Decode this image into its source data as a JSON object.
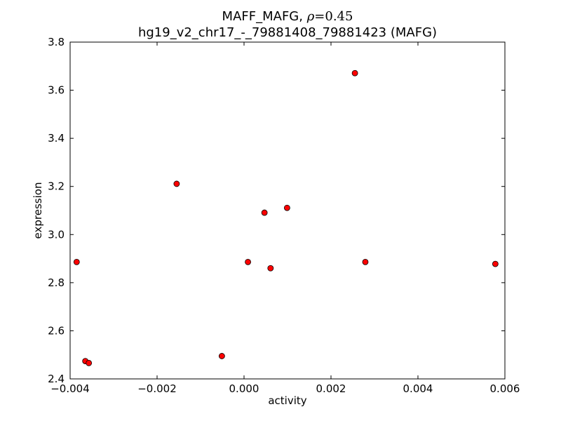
{
  "chart_data": {
    "type": "scatter",
    "title_prefix": "MAFF_MAFG, ",
    "title_rho_symbol": "ρ",
    "title_rho_value": "=0.45",
    "subtitle": "hg19_v2_chr17_-_79881408_79881423 (MAFG)",
    "xlabel": "activity",
    "ylabel": "expression",
    "xlim": [
      -0.004,
      0.006
    ],
    "ylim": [
      2.4,
      3.8
    ],
    "xticks": [
      -0.004,
      -0.002,
      0.0,
      0.002,
      0.004,
      0.006
    ],
    "xtick_labels": [
      "−0.004",
      "−0.002",
      "0.000",
      "0.002",
      "0.004",
      "0.006"
    ],
    "yticks": [
      2.4,
      2.6,
      2.8,
      3.0,
      3.2,
      3.4,
      3.6,
      3.8
    ],
    "ytick_labels": [
      "2.4",
      "2.6",
      "2.8",
      "3.0",
      "3.2",
      "3.4",
      "3.6",
      "3.8"
    ],
    "grid": false,
    "marker_color": "#ff0000",
    "marker_edge_color": "#000000",
    "points": [
      {
        "x": -0.00385,
        "y": 2.886
      },
      {
        "x": -0.00365,
        "y": 2.474
      },
      {
        "x": -0.00357,
        "y": 2.466
      },
      {
        "x": -0.00155,
        "y": 3.211
      },
      {
        "x": -0.00051,
        "y": 2.495
      },
      {
        "x": 9e-05,
        "y": 2.886
      },
      {
        "x": 0.00047,
        "y": 3.091
      },
      {
        "x": 0.00061,
        "y": 2.86
      },
      {
        "x": 0.00099,
        "y": 3.111
      },
      {
        "x": 0.00255,
        "y": 3.671
      },
      {
        "x": 0.00279,
        "y": 2.886
      },
      {
        "x": 0.00578,
        "y": 2.878
      }
    ]
  }
}
